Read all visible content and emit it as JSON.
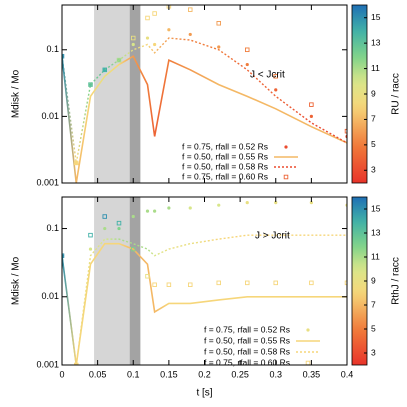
{
  "chart_data": [
    {
      "type": "line",
      "ylabel": "Mdisk / Mo",
      "annotation": "J < Jcrit",
      "colorbar_label": "RU / racc",
      "clim": [
        2,
        16
      ],
      "cticks": [
        3,
        5,
        7,
        9,
        11,
        13,
        15
      ],
      "log_y": true,
      "spans": [
        {
          "x": [
            0.045,
            0.095
          ],
          "color": "#d6d6d6"
        },
        {
          "x": [
            0.095,
            0.11
          ],
          "color": "#a3a3a3"
        }
      ],
      "x": [
        0,
        0.02,
        0.04,
        0.06,
        0.08,
        0.1,
        0.12,
        0.13,
        0.15,
        0.18,
        0.22,
        0.26,
        0.3,
        0.35,
        0.4
      ],
      "xlim": [
        0,
        0.4
      ],
      "xticks": [
        0,
        0.05,
        0.1,
        0.15,
        0.2,
        0.25,
        0.3,
        0.35,
        0.4
      ],
      "ylim": [
        0.001,
        0.47
      ],
      "yticks": [
        0.001,
        0.01,
        0.1
      ],
      "series": [
        {
          "name": "f = 0.75, rfall = 0.52 Rs",
          "style": "dots",
          "values": [
            0.08,
            0.002,
            0.03,
            0.05,
            0.07,
            0.12,
            0.15,
            0.12,
            0.2,
            0.17,
            0.11,
            0.06,
            0.025,
            0.01,
            0.005
          ],
          "color_values": [
            15,
            8,
            13,
            14,
            12,
            10,
            9,
            8,
            7,
            6,
            6,
            5,
            4,
            4,
            3
          ]
        },
        {
          "name": "f = 0.50, rfall = 0.55 Rs",
          "style": "line",
          "values": [
            0.08,
            0.001,
            0.02,
            0.04,
            0.06,
            0.08,
            0.03,
            0.005,
            0.07,
            0.05,
            0.03,
            0.02,
            0.013,
            0.007,
            0.004
          ],
          "color_values": [
            15,
            7,
            8,
            9,
            8,
            6,
            5,
            4,
            5,
            6,
            7,
            7,
            7,
            7,
            7
          ]
        },
        {
          "name": "f = 0.50, rfall = 0.58 Rs",
          "style": "dashed",
          "values": [
            0.08,
            0.002,
            0.03,
            0.05,
            0.07,
            0.1,
            0.12,
            0.09,
            0.15,
            0.14,
            0.1,
            0.05,
            0.02,
            0.008,
            0.004
          ],
          "color_values": [
            15,
            8,
            12,
            13,
            11,
            9,
            8,
            7,
            6,
            5,
            5,
            4,
            4,
            3,
            3
          ]
        },
        {
          "name": "f = 0.75, rfall = 0.60 Rs",
          "style": "squares",
          "values": [
            0.08,
            0.002,
            0.03,
            0.05,
            0.07,
            0.15,
            0.3,
            0.35,
            0.45,
            0.4,
            0.25,
            0.1,
            0.04,
            0.015,
            0.006
          ],
          "color_values": [
            15,
            8,
            13,
            14,
            11,
            9,
            8,
            8,
            8,
            7,
            6,
            5,
            5,
            4,
            4
          ]
        }
      ]
    },
    {
      "type": "line",
      "ylabel": "Mdisk / Mo",
      "xlabel": "t [s]",
      "annotation": "J > Jcrit",
      "colorbar_label": "RthJ / racc",
      "clim": [
        2,
        16
      ],
      "cticks": [
        3,
        5,
        7,
        9,
        11,
        13,
        15
      ],
      "log_y": true,
      "spans": [
        {
          "x": [
            0.045,
            0.095
          ],
          "color": "#d6d6d6"
        },
        {
          "x": [
            0.095,
            0.11
          ],
          "color": "#a3a3a3"
        }
      ],
      "x": [
        0,
        0.02,
        0.04,
        0.06,
        0.08,
        0.1,
        0.12,
        0.13,
        0.15,
        0.18,
        0.22,
        0.26,
        0.3,
        0.35,
        0.4
      ],
      "xlim": [
        0,
        0.4
      ],
      "xticks": [
        0,
        0.05,
        0.1,
        0.15,
        0.2,
        0.25,
        0.3,
        0.35,
        0.4
      ],
      "ylim": [
        0.001,
        0.29
      ],
      "yticks": [
        0.001,
        0.01,
        0.1
      ],
      "series": [
        {
          "name": "f = 0.75, rfall = 0.52 Rs",
          "style": "dots",
          "values": [
            0.04,
            0.001,
            0.05,
            0.1,
            0.1,
            0.15,
            0.18,
            0.18,
            0.2,
            0.2,
            0.22,
            0.24,
            0.24,
            0.24,
            0.22
          ],
          "color_values": [
            15,
            8,
            10,
            11,
            12,
            11,
            11,
            11,
            11,
            10,
            10,
            9,
            9,
            9,
            9
          ]
        },
        {
          "name": "f = 0.50, rfall = 0.55 Rs",
          "style": "line",
          "values": [
            0.04,
            0.001,
            0.03,
            0.06,
            0.06,
            0.05,
            0.03,
            0.006,
            0.008,
            0.008,
            0.009,
            0.01,
            0.01,
            0.01,
            0.01
          ],
          "color_values": [
            15,
            8,
            8,
            8,
            8,
            7,
            7,
            7,
            8,
            8,
            8,
            8,
            8,
            8,
            8
          ]
        },
        {
          "name": "f = 0.50, rfall = 0.58 Rs",
          "style": "dashed",
          "values": [
            0.04,
            0.001,
            0.04,
            0.07,
            0.07,
            0.06,
            0.05,
            0.04,
            0.05,
            0.06,
            0.07,
            0.08,
            0.08,
            0.08,
            0.08
          ],
          "color_values": [
            15,
            8,
            9,
            10,
            11,
            11,
            11,
            10,
            9,
            9,
            8,
            8,
            8,
            8,
            8
          ]
        },
        {
          "name": "f = 0.75, rfall = 0.60 Rs",
          "style": "squares",
          "values": [
            0.04,
            0.001,
            0.08,
            0.15,
            0.12,
            0.05,
            0.02,
            0.015,
            0.015,
            0.015,
            0.016,
            0.016,
            0.016,
            0.016,
            0.016
          ],
          "color_values": [
            15,
            8,
            14,
            15,
            14,
            12,
            9,
            8,
            8,
            8,
            8,
            8,
            8,
            8,
            8
          ]
        }
      ]
    }
  ]
}
